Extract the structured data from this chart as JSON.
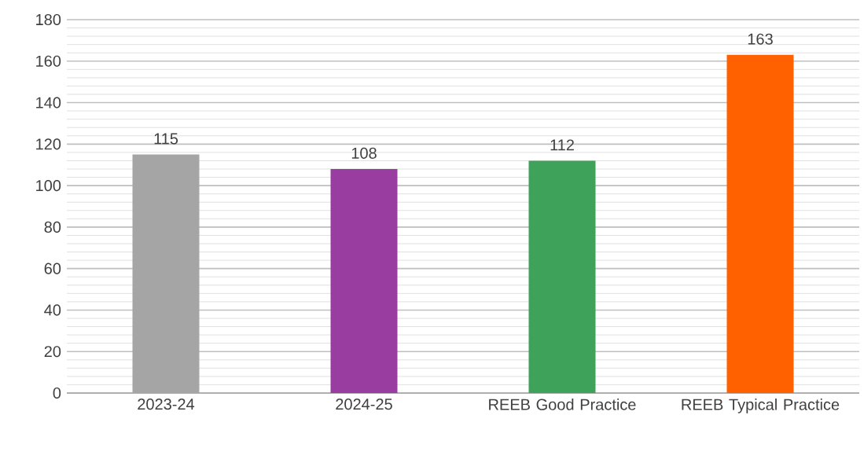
{
  "chart_data": {
    "type": "bar",
    "categories": [
      "2023-24",
      "2024-25",
      "REEB Good Practice",
      "REEB Typical Practice"
    ],
    "values": [
      115,
      108,
      112,
      163
    ],
    "colors": [
      "#a5a5a5",
      "#993da1",
      "#3fa25a",
      "#ff6000"
    ],
    "ylim": [
      0,
      180
    ],
    "yticks": [
      0,
      20,
      40,
      60,
      80,
      100,
      120,
      140,
      160,
      180
    ],
    "grid": "y",
    "data_labels": true
  }
}
